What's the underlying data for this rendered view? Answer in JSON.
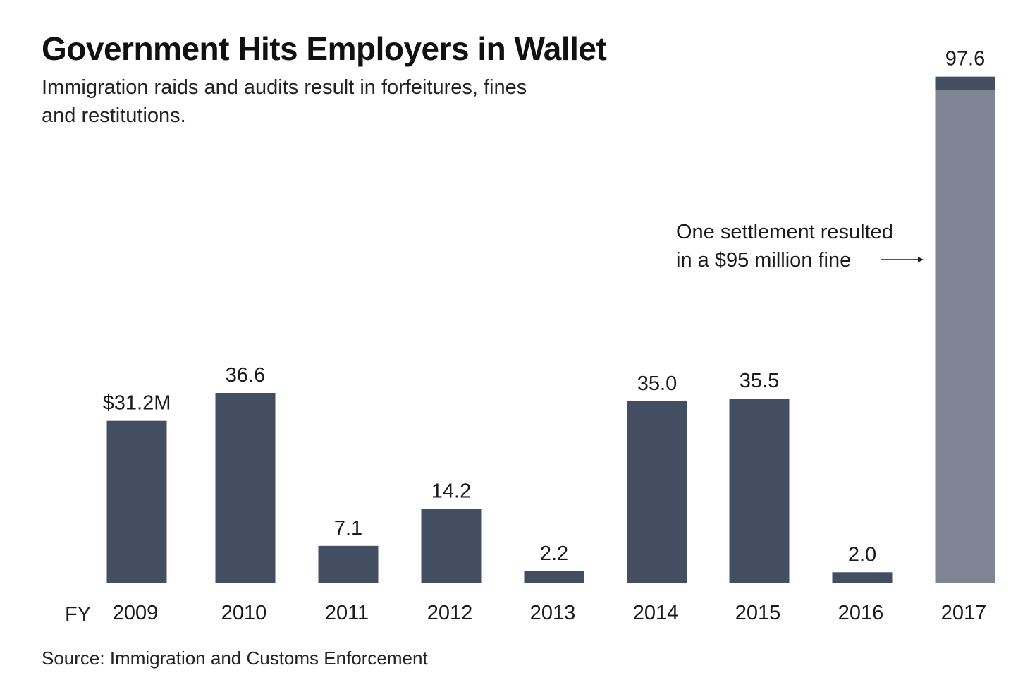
{
  "header": {
    "title": "Government Hits Employers in Wallet",
    "subtitle": "Immigration raids and audits result in forfeitures, fines and restitutions."
  },
  "footer": {
    "source": "Source: Immigration and Customs Enforcement"
  },
  "annotation": {
    "line1": "One settlement resulted",
    "line2": "in a $95 million fine"
  },
  "chart_data": {
    "type": "bar",
    "title": "Government Hits Employers in Wallet",
    "subtitle": "Immigration raids and audits result in forfeitures, fines and restitutions.",
    "x_prefix": "FY",
    "categories": [
      "2009",
      "2010",
      "2011",
      "2012",
      "2013",
      "2014",
      "2015",
      "2016",
      "2017"
    ],
    "values": [
      31.2,
      36.6,
      7.1,
      14.2,
      2.2,
      35.0,
      35.5,
      2.0,
      97.6
    ],
    "value_labels": [
      "$31.2M",
      "36.6",
      "7.1",
      "14.2",
      "2.2",
      "35.0",
      "35.5",
      "2.0",
      "97.6"
    ],
    "highlight": {
      "category": "2017",
      "fine_portion": 95.0,
      "remainder": 2.6
    },
    "unit": "millions of dollars",
    "ylim": [
      0,
      100
    ],
    "grid": false,
    "legend": "none",
    "colors": {
      "bar": "#434e63",
      "highlight_fine": "#7f8594",
      "text": "#1a1a1a"
    }
  }
}
